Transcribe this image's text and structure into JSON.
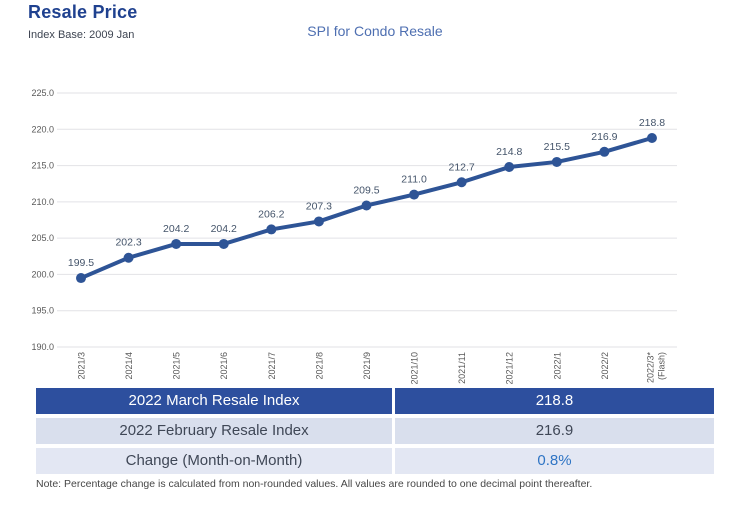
{
  "header": {
    "title": "Resale Price",
    "index_base": "Index Base: 2009 Jan",
    "chart_title": "SPI for Condo Resale"
  },
  "chart_data": {
    "type": "line",
    "title": "SPI for Condo Resale",
    "categories": [
      "2021/3",
      "2021/4",
      "2021/5",
      "2021/6",
      "2021/7",
      "2021/8",
      "2021/9",
      "2021/10",
      "2021/11",
      "2021/12",
      "2022/1",
      "2022/2",
      "2022/3* (Flash)"
    ],
    "values": [
      199.5,
      202.3,
      204.2,
      204.2,
      206.2,
      207.3,
      209.5,
      211.0,
      212.7,
      214.8,
      215.5,
      216.9,
      218.8
    ],
    "xlabel": "",
    "ylabel": "",
    "ylim": [
      190.0,
      225.0
    ],
    "ytick_step": 5.0,
    "grid": true,
    "legend": "none",
    "line_color": "#2E5496",
    "marker_color": "#2E5496",
    "data_label_color": "#44546A",
    "tick_label_color": "#595959",
    "gridline_color": "#E2E2E6"
  },
  "table": {
    "rows": [
      {
        "label": "2022 March Resale Index",
        "value": "218.8"
      },
      {
        "label": "2022 February Resale Index",
        "value": "216.9"
      },
      {
        "label": "Change (Month-on-Month)",
        "value": "0.8%"
      }
    ]
  },
  "note": "Note: Percentage change is calculated from non-rounded values.  All values are rounded to one decimal point thereafter."
}
